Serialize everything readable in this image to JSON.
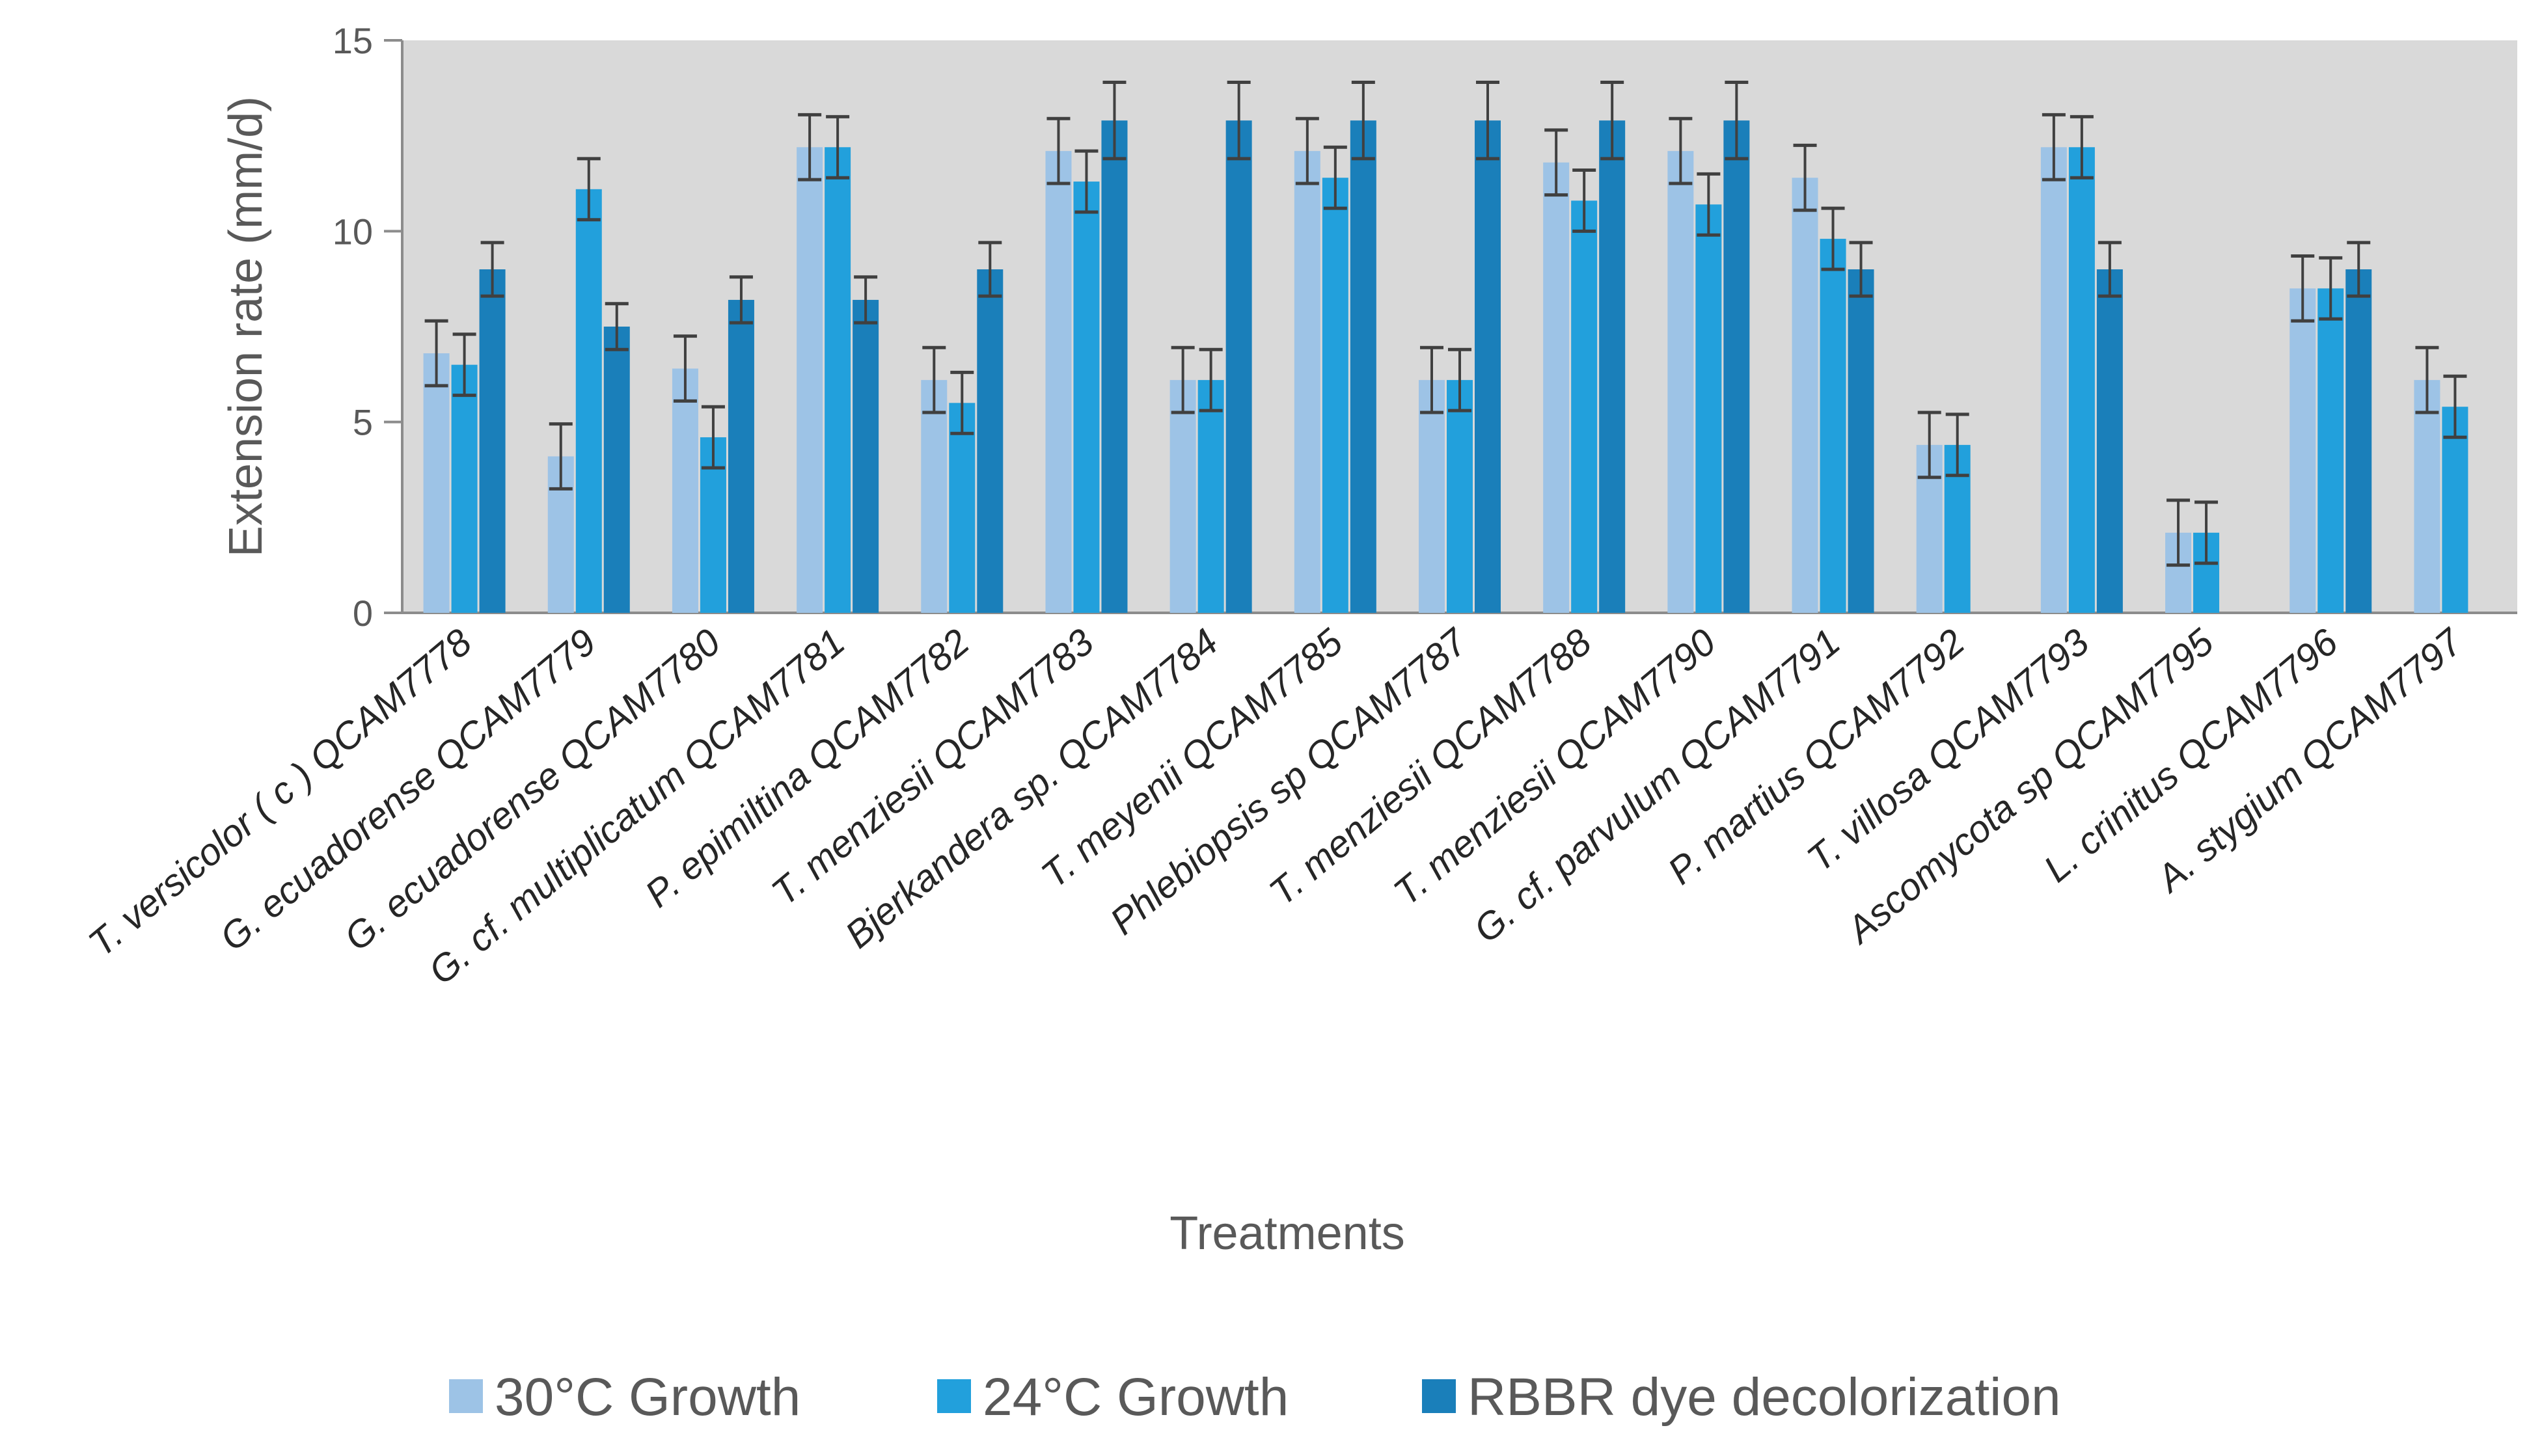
{
  "chart_data": {
    "type": "bar",
    "title": "",
    "xlabel": "Treatments",
    "ylabel": "Extension rate (mm/d)",
    "ylim": [
      0,
      15
    ],
    "yticks": [
      0,
      5,
      10,
      15
    ],
    "grid": false,
    "legend_position": "bottom",
    "plot_background": "#d9d9d9",
    "categories": [
      "T. versicolor ( c ) QCAM7778",
      "G. ecuadorense QCAM7779",
      "G. ecuadorense QCAM7780",
      "G. cf. multiplicatum QCAM7781",
      "P. epimiltina QCAM7782",
      "T. menziesii QCAM7783",
      "Bjerkandera sp. QCAM7784",
      "T. meyenii QCAM7785",
      "Phlebiopsis sp QCAM7787",
      "T. menziesii QCAM7788",
      "T. menziesii QCAM7790",
      "G. cf. parvulum QCAM7791",
      "P. martius QCAM7792",
      "T. villosa QCAM7793",
      "Ascomycota sp QCAM7795",
      "L. crinitus QCAM7796",
      "A. stygium QCAM7797"
    ],
    "series": [
      {
        "name": "30°C Growth",
        "color": "#9dc3e6",
        "values": [
          6.8,
          4.1,
          6.4,
          12.2,
          6.1,
          12.1,
          6.1,
          12.1,
          6.1,
          11.8,
          12.1,
          11.4,
          4.4,
          12.2,
          2.1,
          8.5,
          6.1
        ],
        "errors": [
          0.85,
          0.85,
          0.85,
          0.85,
          0.85,
          0.85,
          0.85,
          0.85,
          0.85,
          0.85,
          0.85,
          0.85,
          0.85,
          0.85,
          0.85,
          0.85,
          0.85
        ]
      },
      {
        "name": "24°C Growth",
        "color": "#22a0dc",
        "values": [
          6.5,
          11.1,
          4.6,
          12.2,
          5.5,
          11.3,
          6.1,
          11.4,
          6.1,
          10.8,
          10.7,
          9.8,
          4.4,
          12.2,
          2.1,
          8.5,
          5.4
        ],
        "errors": [
          0.8,
          0.8,
          0.8,
          0.8,
          0.8,
          0.8,
          0.8,
          0.8,
          0.8,
          0.8,
          0.8,
          0.8,
          0.8,
          0.8,
          0.8,
          0.8,
          0.8
        ]
      },
      {
        "name": "RBBR  dye decolorization",
        "color": "#1a7fba",
        "values": [
          9.0,
          7.5,
          8.2,
          8.2,
          9.0,
          12.9,
          12.9,
          12.9,
          12.9,
          12.9,
          12.9,
          9.0,
          null,
          9.0,
          null,
          9.0,
          null
        ],
        "errors": [
          0.7,
          0.6,
          0.6,
          0.6,
          0.7,
          1.0,
          1.0,
          1.0,
          1.0,
          1.0,
          1.0,
          0.7,
          null,
          0.7,
          null,
          0.7,
          null
        ]
      }
    ]
  }
}
